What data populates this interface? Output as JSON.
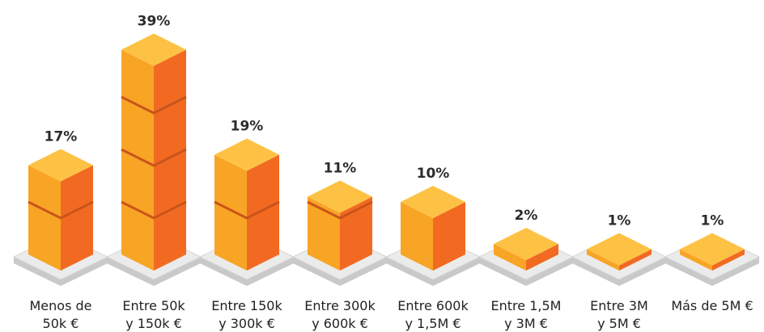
{
  "chart_data": {
    "type": "bar",
    "categories": [
      "Menos de\n50k €",
      "Entre 50k\ny 150k €",
      "Entre 150k\ny 300k €",
      "Entre 300k\ny 600k €",
      "Entre 600k\ny 1,5M €",
      "Entre 1,5M\ny 3M €",
      "Entre 3M\ny 5M €",
      "Más de 5M €"
    ],
    "values": [
      17,
      39,
      19,
      11,
      10,
      2,
      1,
      1
    ],
    "value_labels": [
      "17%",
      "39%",
      "19%",
      "11%",
      "10%",
      "2%",
      "1%",
      "1%"
    ],
    "colors": {
      "front": "#f8a425",
      "side": "#f26a22",
      "top": "#fdc244"
    }
  }
}
